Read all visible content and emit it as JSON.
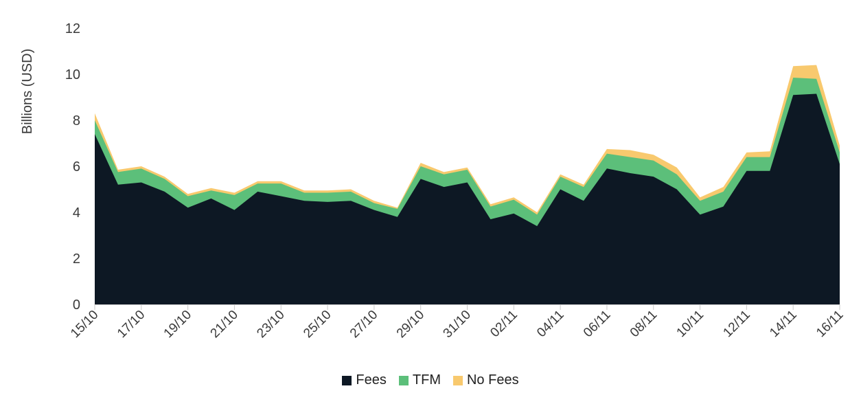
{
  "chart_data": {
    "type": "area",
    "stacked": true,
    "ylabel": "Billions (USD)",
    "xlabel": "",
    "ylim": [
      0,
      12
    ],
    "yticks": [
      0,
      2,
      4,
      6,
      8,
      10,
      12
    ],
    "x": [
      "15/10",
      "16/10",
      "17/10",
      "18/10",
      "19/10",
      "20/10",
      "21/10",
      "22/10",
      "23/10",
      "24/10",
      "25/10",
      "26/10",
      "27/10",
      "28/10",
      "29/10",
      "30/10",
      "31/10",
      "01/11",
      "02/11",
      "03/11",
      "04/11",
      "05/11",
      "06/11",
      "07/11",
      "08/11",
      "09/11",
      "10/11",
      "11/11",
      "12/11",
      "13/11",
      "14/11",
      "15/11",
      "16/11"
    ],
    "xtick_labels": [
      "15/10",
      "17/10",
      "19/10",
      "21/10",
      "23/10",
      "25/10",
      "27/10",
      "29/10",
      "31/10",
      "02/11",
      "04/11",
      "06/11",
      "08/11",
      "10/11",
      "12/11",
      "14/11",
      "16/11"
    ],
    "series": [
      {
        "name": "Fees",
        "color": "#0d1824",
        "values": [
          7.4,
          5.2,
          5.3,
          4.9,
          4.2,
          4.6,
          4.1,
          4.9,
          4.7,
          4.5,
          4.45,
          4.5,
          4.1,
          3.8,
          5.45,
          5.1,
          5.3,
          3.7,
          3.95,
          3.4,
          5.0,
          4.5,
          5.9,
          5.7,
          5.55,
          5.0,
          3.9,
          4.25,
          5.8,
          5.8,
          9.1,
          9.15,
          6.1
        ]
      },
      {
        "name": "TFM",
        "color": "#5cbf7a",
        "values": [
          0.6,
          0.55,
          0.6,
          0.55,
          0.5,
          0.35,
          0.65,
          0.35,
          0.55,
          0.35,
          0.4,
          0.4,
          0.3,
          0.35,
          0.55,
          0.55,
          0.55,
          0.55,
          0.6,
          0.5,
          0.55,
          0.6,
          0.65,
          0.7,
          0.7,
          0.65,
          0.6,
          0.65,
          0.6,
          0.6,
          0.75,
          0.65,
          0.5
        ]
      },
      {
        "name": "No Fees",
        "color": "#f8c96e",
        "values": [
          0.3,
          0.1,
          0.1,
          0.1,
          0.1,
          0.1,
          0.1,
          0.1,
          0.1,
          0.1,
          0.1,
          0.1,
          0.1,
          0.05,
          0.15,
          0.1,
          0.1,
          0.1,
          0.1,
          0.1,
          0.1,
          0.1,
          0.2,
          0.3,
          0.25,
          0.3,
          0.15,
          0.2,
          0.2,
          0.25,
          0.5,
          0.6,
          0.3
        ]
      }
    ],
    "legend": "bottom-center",
    "grid": false
  }
}
